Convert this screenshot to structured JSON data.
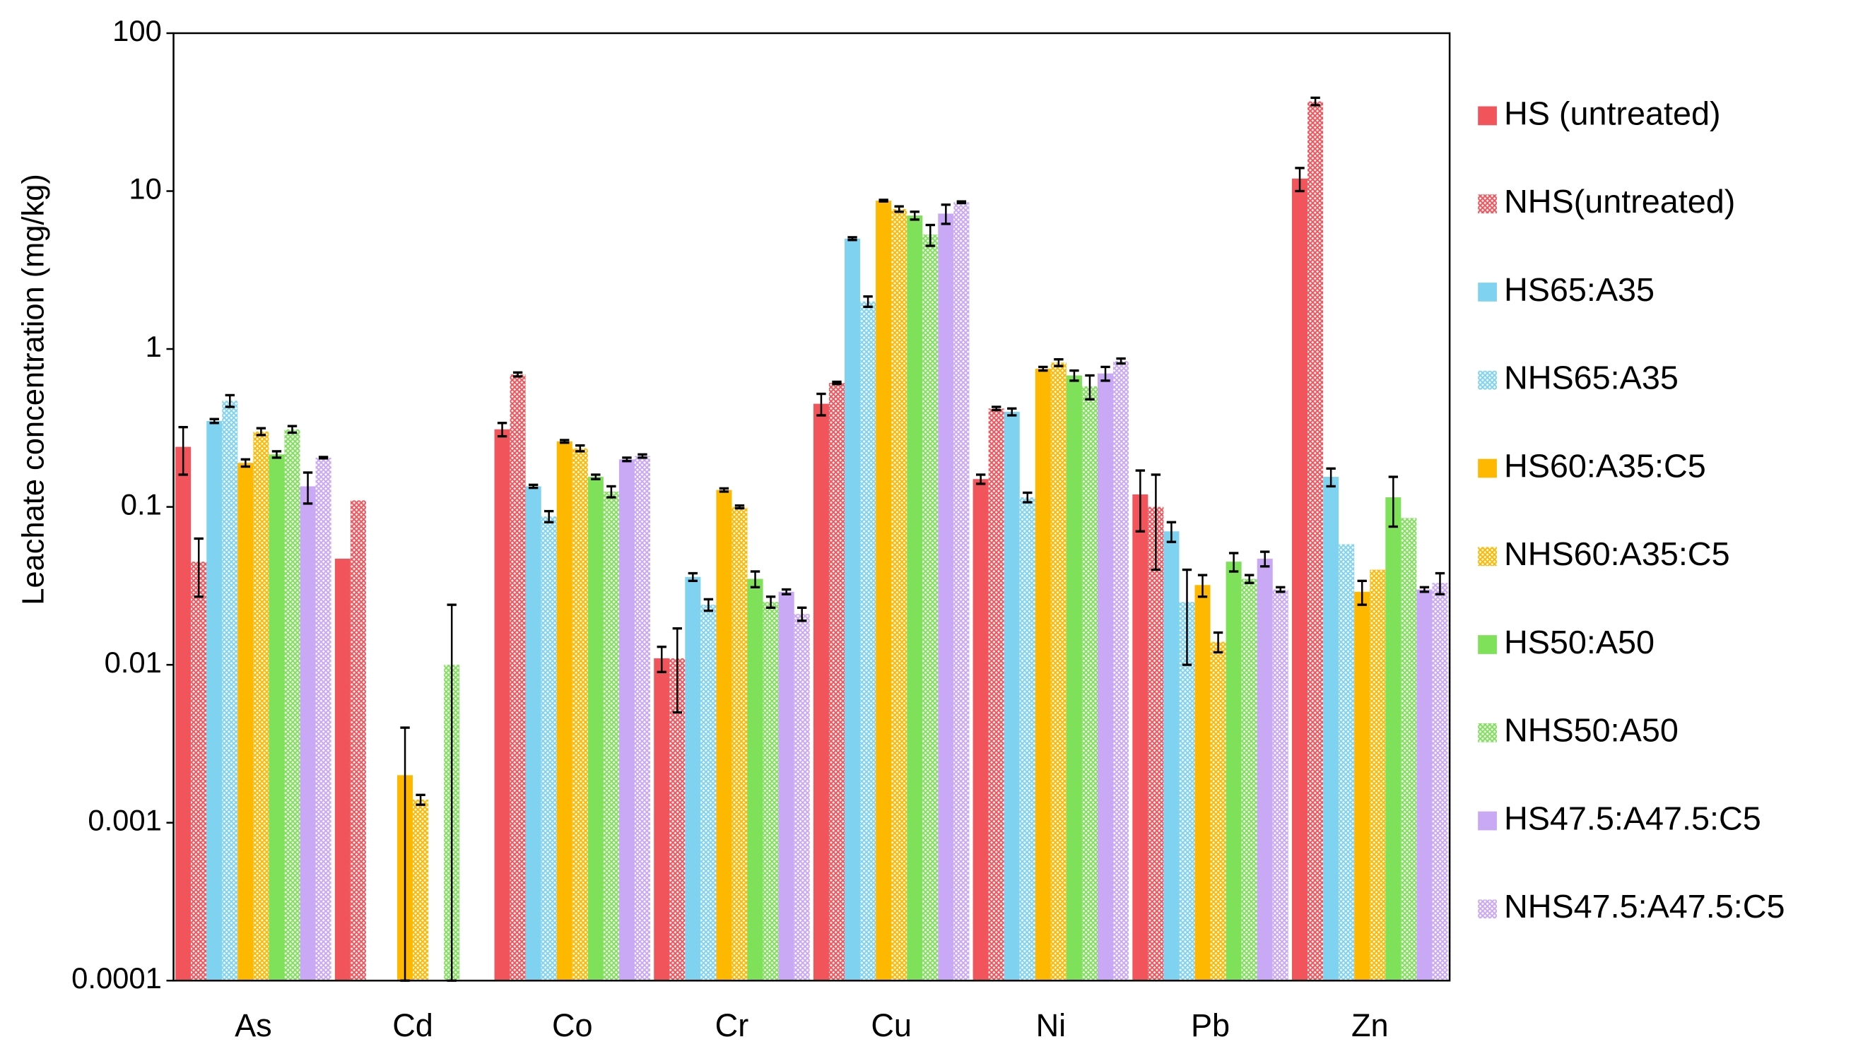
{
  "chart_data": {
    "type": "bar",
    "y_label": "Leachate concentration (mg/kg)",
    "log_scale": true,
    "ylim": [
      0.0001,
      100
    ],
    "yticks": [
      0.0001,
      0.001,
      0.01,
      0.1,
      1,
      10,
      100
    ],
    "categories": [
      "As",
      "Cd",
      "Co",
      "Cr",
      "Cu",
      "Ni",
      "Pb",
      "Zn"
    ],
    "legend_position": "right",
    "series": [
      {
        "name": "HS (untreated)",
        "color": "#f2545b",
        "pattern": "solid",
        "values": [
          0.24,
          0.047,
          0.31,
          0.011,
          0.45,
          0.15,
          0.12,
          12
        ],
        "errors": [
          0.08,
          null,
          0.03,
          0.002,
          0.07,
          0.01,
          0.05,
          2
        ]
      },
      {
        "name": "NHS(untreated)",
        "color": "#f2545b",
        "pattern": "crosshatch",
        "values": [
          0.045,
          0.11,
          0.69,
          0.011,
          0.61,
          0.42,
          0.1,
          37
        ],
        "errors": [
          0.018,
          null,
          0.02,
          0.006,
          0.01,
          0.01,
          0.06,
          2
        ]
      },
      {
        "name": "HS65:A35",
        "color": "#7fd3f0",
        "pattern": "solid",
        "values": [
          0.35,
          null,
          0.135,
          0.036,
          5.0,
          0.4,
          0.07,
          0.155
        ],
        "errors": [
          0.01,
          null,
          0.003,
          0.002,
          0.1,
          0.02,
          0.01,
          0.02
        ]
      },
      {
        "name": "NHS65:A35",
        "color": "#7fd3f0",
        "pattern": "crosshatch",
        "values": [
          0.47,
          null,
          0.087,
          0.024,
          2.0,
          0.115,
          0.025,
          0.058
        ],
        "errors": [
          0.04,
          null,
          0.007,
          0.002,
          0.15,
          0.008,
          0.015,
          null
        ]
      },
      {
        "name": "HS60:A35:C5",
        "color": "#ffb800",
        "pattern": "solid",
        "values": [
          0.19,
          0.002,
          0.26,
          0.128,
          8.7,
          0.75,
          0.032,
          0.029
        ],
        "errors": [
          0.01,
          0.002,
          0.005,
          0.003,
          0.1,
          0.02,
          0.005,
          0.005
        ]
      },
      {
        "name": "NHS60:A35:C5",
        "color": "#ffb800",
        "pattern": "crosshatch",
        "values": [
          0.3,
          0.0014,
          0.235,
          0.1,
          7.7,
          0.82,
          0.014,
          0.04
        ],
        "errors": [
          0.015,
          0.0001,
          0.01,
          0.002,
          0.3,
          0.04,
          0.002,
          null
        ]
      },
      {
        "name": "HS50:A50",
        "color": "#7fe05a",
        "pattern": "solid",
        "values": [
          0.215,
          null,
          0.155,
          0.035,
          7.0,
          0.68,
          0.045,
          0.115
        ],
        "errors": [
          0.01,
          null,
          0.005,
          0.004,
          0.4,
          0.05,
          0.006,
          0.04
        ]
      },
      {
        "name": "NHS50:A50",
        "color": "#7fe05a",
        "pattern": "crosshatch",
        "values": [
          0.31,
          0.01,
          0.125,
          0.025,
          5.3,
          0.58,
          0.035,
          0.085
        ],
        "errors": [
          0.015,
          0.014,
          0.01,
          0.002,
          0.8,
          0.1,
          0.002,
          null
        ]
      },
      {
        "name": "HS47.5:A47.5:C5",
        "color": "#c9a8f5",
        "pattern": "solid",
        "values": [
          0.135,
          null,
          0.2,
          0.029,
          7.2,
          0.7,
          0.047,
          0.03
        ],
        "errors": [
          0.03,
          null,
          0.005,
          0.001,
          1.0,
          0.07,
          0.005,
          0.001
        ]
      },
      {
        "name": "NHS47.5:A47.5:C5",
        "color": "#c9a8f5",
        "pattern": "crosshatch",
        "values": [
          0.205,
          null,
          0.21,
          0.021,
          8.5,
          0.84,
          0.03,
          0.033
        ],
        "errors": [
          0.002,
          null,
          0.005,
          0.002,
          0.1,
          0.03,
          0.001,
          0.005
        ]
      }
    ]
  }
}
